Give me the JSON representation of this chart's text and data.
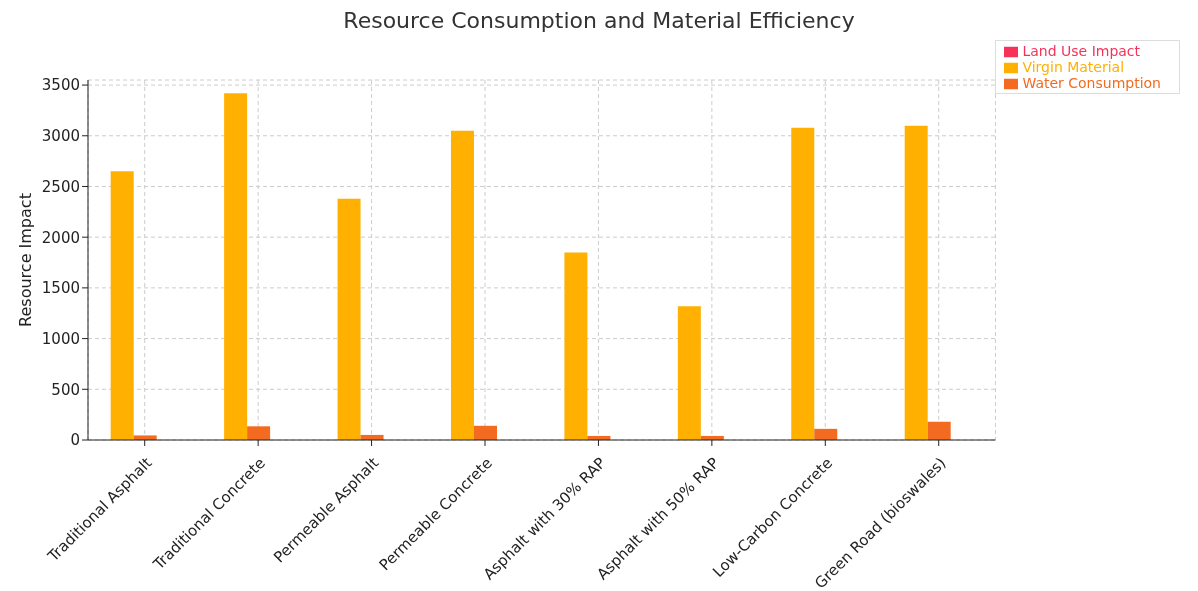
{
  "chart_data": {
    "type": "bar",
    "title": "Resource Consumption and Material Efficiency",
    "ylabel": "Resource Impact",
    "categories": [
      "Traditional Asphalt",
      "Traditional Concrete",
      "Permeable Asphalt",
      "Permeable Concrete",
      "Asphalt with 30% RAP",
      "Asphalt with 50% RAP",
      "Low-Carbon Concrete",
      "Green Road (bioswales)"
    ],
    "series": [
      {
        "name": "Virgin Material",
        "color": "#ffb000",
        "values": [
          2650,
          3420,
          2380,
          3050,
          1850,
          1320,
          3080,
          3100
        ]
      },
      {
        "name": "Water Consumption",
        "color": "#f26b21",
        "values": [
          45,
          135,
          50,
          140,
          40,
          40,
          110,
          180
        ]
      },
      {
        "name": "Land Use Impact",
        "color": "#f7325a",
        "values": [
          0,
          0,
          0,
          0,
          0,
          0,
          0,
          0
        ]
      }
    ],
    "ylim": [
      0,
      3550
    ],
    "yticks": [
      0,
      500,
      1000,
      1500,
      2000,
      2500,
      3000,
      3500
    ],
    "grid": true,
    "legend": "top right"
  }
}
